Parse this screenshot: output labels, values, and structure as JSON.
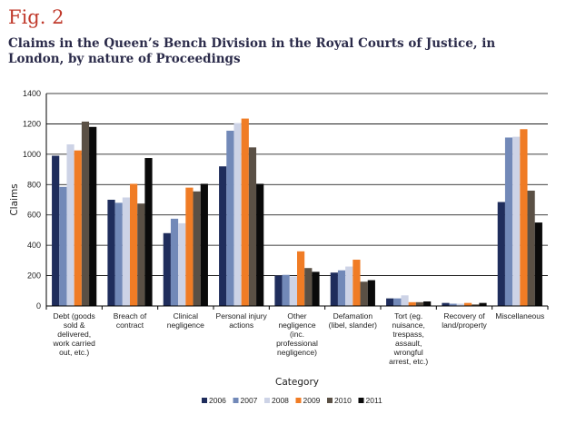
{
  "figure_label": "Fig. 2",
  "chart_data": {
    "type": "bar",
    "title": "Claims in the Queen’s Bench Division in the Royal Courts of Justice, in London, by nature of Proceedings",
    "xlabel": "Category",
    "ylabel": "Claims",
    "ylim": [
      0,
      1400
    ],
    "yticks": [
      0,
      200,
      400,
      600,
      800,
      1000,
      1200,
      1400
    ],
    "grid": true,
    "legend_position": "bottom",
    "categories": [
      [
        "Debt (goods",
        "sold &",
        "delivered,",
        "work carried",
        "out, etc.)"
      ],
      [
        "Breach of",
        "contract"
      ],
      [
        "Clinical",
        "negligence"
      ],
      [
        "Personal injury",
        "actions"
      ],
      [
        "Other",
        "negligence",
        "(inc.",
        "professional",
        "negligence)"
      ],
      [
        "Defamation",
        "(libel, slander)"
      ],
      [
        "Tort (eg.",
        "nuisance,",
        "trespass,",
        "assault,",
        "wrongful",
        "arrest, etc.)"
      ],
      [
        "Recovery of",
        "land/property"
      ],
      [
        "Miscellaneous"
      ]
    ],
    "series": [
      {
        "name": "2006",
        "color": "#1f2d5c",
        "values": [
          990,
          700,
          480,
          920,
          200,
          220,
          50,
          20,
          685
        ]
      },
      {
        "name": "2007",
        "color": "#7289b8",
        "values": [
          785,
          680,
          575,
          1155,
          205,
          235,
          50,
          15,
          1110
        ]
      },
      {
        "name": "2008",
        "color": "#cdd3e6",
        "values": [
          1065,
          715,
          545,
          1205,
          195,
          260,
          70,
          15,
          1115
        ]
      },
      {
        "name": "2009",
        "color": "#f07c25",
        "values": [
          1025,
          805,
          780,
          1235,
          360,
          305,
          25,
          20,
          1165
        ]
      },
      {
        "name": "2010",
        "color": "#5a5045",
        "values": [
          1215,
          675,
          755,
          1045,
          250,
          160,
          25,
          10,
          760
        ]
      },
      {
        "name": "2011",
        "color": "#0a0a0a",
        "values": [
          1180,
          975,
          805,
          805,
          225,
          170,
          30,
          20,
          550
        ]
      }
    ]
  }
}
